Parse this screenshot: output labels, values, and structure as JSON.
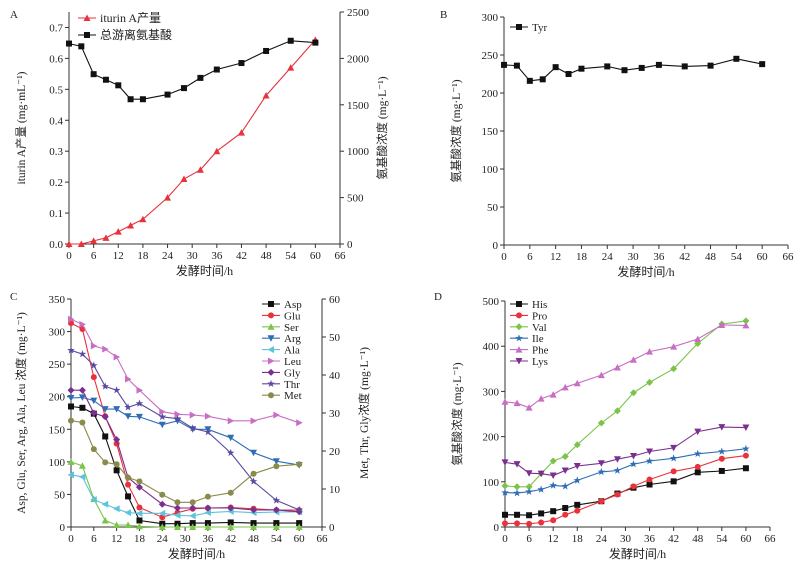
{
  "chart_data": [
    {
      "panel": "A",
      "type": "line",
      "x": [
        0,
        3,
        6,
        9,
        12,
        15,
        18,
        24,
        28,
        32,
        36,
        42,
        48,
        54,
        60
      ],
      "xlabel": "发酵时间/h",
      "xticks": [
        0,
        6,
        12,
        18,
        24,
        30,
        36,
        42,
        48,
        54,
        60,
        66
      ],
      "xlim": [
        0,
        66
      ],
      "ylabel": "iturin A产量 (mg·mL⁻¹)",
      "ylim": [
        0,
        0.75
      ],
      "yticks": [
        0.0,
        0.1,
        0.2,
        0.3,
        0.4,
        0.5,
        0.6,
        0.7
      ],
      "ylabel2": "氨基酸浓度 (mg·L⁻¹)",
      "ylim2": [
        0,
        2500
      ],
      "yticks2": [
        0,
        500,
        1000,
        1500,
        2000,
        2500
      ],
      "legend": "top-left",
      "series": [
        {
          "name": "iturin A产量",
          "axis": "left",
          "color": "#e8323c",
          "marker": "triangle",
          "values": [
            0,
            0,
            0.01,
            0.02,
            0.04,
            0.06,
            0.08,
            0.15,
            0.21,
            0.24,
            0.3,
            0.36,
            0.48,
            0.57,
            0.66
          ]
        },
        {
          "name": "总游离氨基酸",
          "axis": "right",
          "color": "#111111",
          "marker": "square",
          "values": [
            2160,
            2130,
            1830,
            1770,
            1710,
            1560,
            1560,
            1610,
            1680,
            1790,
            1880,
            1950,
            2080,
            2190,
            2170
          ]
        }
      ]
    },
    {
      "panel": "B",
      "type": "line",
      "x": [
        0,
        3,
        6,
        9,
        12,
        15,
        18,
        24,
        28,
        32,
        36,
        42,
        48,
        54,
        60
      ],
      "xlabel": "发酵时间/h",
      "xticks": [
        0,
        6,
        12,
        18,
        24,
        30,
        36,
        42,
        48,
        54,
        60,
        66
      ],
      "xlim": [
        0,
        66
      ],
      "ylabel": "氨基酸浓度 (mg·L⁻¹)",
      "ylim": [
        0,
        300
      ],
      "yticks": [
        0,
        50,
        100,
        150,
        200,
        250,
        300
      ],
      "legend": "top-left",
      "series": [
        {
          "name": "Tyr",
          "axis": "left",
          "color": "#111111",
          "marker": "square",
          "values": [
            237,
            236,
            216,
            218,
            234,
            225,
            232,
            235,
            230,
            233,
            237,
            235,
            236,
            245,
            238
          ]
        }
      ]
    },
    {
      "panel": "C",
      "type": "line",
      "x": [
        0,
        3,
        6,
        9,
        12,
        15,
        18,
        24,
        28,
        32,
        36,
        42,
        48,
        54,
        60
      ],
      "xlabel": "发酵时间/h",
      "xticks": [
        0,
        6,
        12,
        18,
        24,
        30,
        36,
        42,
        48,
        54,
        60,
        66
      ],
      "xlim": [
        0,
        66
      ],
      "ylabel": "Asp, Glu, Ser, Arg, Ala, Leu 浓度 (mg·L⁻¹)",
      "ylim": [
        0,
        350
      ],
      "yticks": [
        0,
        50,
        100,
        150,
        200,
        250,
        300,
        350
      ],
      "ylabel2": "Met, Thr, Gly浓度 (mg·L⁻¹)",
      "ylim2": [
        0,
        60
      ],
      "yticks2": [
        0,
        10,
        20,
        30,
        40,
        50,
        60
      ],
      "legend": "top-right",
      "series": [
        {
          "name": "Asp",
          "axis": "left",
          "color": "#111111",
          "marker": "square",
          "values": [
            185,
            183,
            174,
            139,
            87,
            47,
            10,
            5,
            5,
            6,
            6,
            7,
            6,
            6,
            6
          ]
        },
        {
          "name": "Glu",
          "axis": "left",
          "color": "#e8323c",
          "marker": "circle",
          "values": [
            313,
            304,
            230,
            170,
            128,
            65,
            30,
            15,
            22,
            28,
            29,
            30,
            28,
            26,
            26
          ]
        },
        {
          "name": "Ser",
          "axis": "left",
          "color": "#7cc34a",
          "marker": "triangle",
          "values": [
            100,
            94,
            43,
            10,
            3,
            3,
            1,
            0,
            0,
            0,
            0,
            0,
            0,
            0,
            0
          ]
        },
        {
          "name": "Arg",
          "axis": "left",
          "color": "#2f6db5",
          "marker": "triangle-down",
          "values": [
            198,
            199,
            194,
            181,
            181,
            170,
            169,
            157,
            163,
            150,
            150,
            137,
            114,
            101,
            95
          ]
        },
        {
          "name": "Ala",
          "axis": "left",
          "color": "#5bc4dc",
          "marker": "triangle-left",
          "values": [
            80,
            77,
            42,
            35,
            28,
            22,
            21,
            21,
            18,
            17,
            22,
            24,
            22,
            23,
            23
          ]
        },
        {
          "name": "Leu",
          "axis": "left",
          "color": "#c86ec4",
          "marker": "triangle-right",
          "values": [
            319,
            311,
            278,
            273,
            261,
            227,
            210,
            177,
            173,
            172,
            170,
            163,
            163,
            172,
            160
          ]
        },
        {
          "name": "Gly",
          "axis": "right",
          "color": "#7b2f8e",
          "marker": "diamond",
          "values": [
            36,
            36,
            30,
            29,
            23,
            13,
            10.5,
            6,
            5,
            5,
            5,
            5,
            4.5,
            4.5,
            4
          ]
        },
        {
          "name": "Thr",
          "axis": "right",
          "color": "#5a4aa0",
          "marker": "star",
          "values": [
            46.5,
            45.5,
            42.5,
            37,
            36,
            31.5,
            32.5,
            29,
            28.5,
            26,
            25,
            19.5,
            12,
            7,
            4.5
          ]
        },
        {
          "name": "Met",
          "axis": "right",
          "color": "#8a8a4a",
          "marker": "circle",
          "values": [
            28,
            27.5,
            20.5,
            17,
            16.5,
            13,
            12,
            8.5,
            6.5,
            6.5,
            8,
            9,
            14,
            16,
            16.5
          ]
        }
      ]
    },
    {
      "panel": "D",
      "type": "line",
      "x": [
        0,
        3,
        6,
        9,
        12,
        15,
        18,
        24,
        28,
        32,
        36,
        42,
        48,
        54,
        60
      ],
      "xlabel": "发酵时间/h",
      "xticks": [
        0,
        6,
        12,
        18,
        24,
        30,
        36,
        42,
        48,
        54,
        60,
        66
      ],
      "xlim": [
        0,
        66
      ],
      "ylabel": "氨基酸浓度 (mg·L⁻¹)",
      "ylim": [
        0,
        500
      ],
      "yticks": [
        0,
        100,
        200,
        300,
        400,
        500
      ],
      "legend": "top-left",
      "series": [
        {
          "name": "His",
          "color": "#111111",
          "marker": "square",
          "values": [
            27,
            27,
            26,
            30,
            35,
            42,
            49,
            57,
            74,
            87,
            94,
            101,
            121,
            124,
            130
          ]
        },
        {
          "name": "Pro",
          "color": "#e8323c",
          "marker": "circle",
          "values": [
            8,
            8,
            7,
            10,
            15,
            27,
            36,
            57,
            72,
            90,
            105,
            123,
            133,
            151,
            158
          ]
        },
        {
          "name": "Val",
          "color": "#7cc34a",
          "marker": "diamond",
          "values": [
            91,
            89,
            89,
            118,
            146,
            156,
            182,
            230,
            257,
            297,
            320,
            350,
            406,
            449,
            456
          ]
        },
        {
          "name": "Ile",
          "color": "#2f6db5",
          "marker": "star",
          "values": [
            76,
            75,
            78,
            83,
            92,
            90,
            103,
            122,
            125,
            139,
            146,
            152,
            162,
            167,
            173
          ]
        },
        {
          "name": "Phe",
          "color": "#c86ec4",
          "marker": "triangle",
          "values": [
            277,
            274,
            264,
            284,
            293,
            309,
            318,
            336,
            353,
            370,
            388,
            399,
            416,
            447,
            446
          ]
        },
        {
          "name": "Lys",
          "color": "#7b2f8e",
          "marker": "triangle-down",
          "values": [
            143,
            139,
            119,
            118,
            114,
            125,
            135,
            141,
            150,
            157,
            167,
            175,
            211,
            221,
            220
          ]
        }
      ]
    }
  ],
  "panels": {
    "A": {
      "label": "A"
    },
    "B": {
      "label": "B"
    },
    "C": {
      "label": "C"
    },
    "D": {
      "label": "D"
    }
  }
}
